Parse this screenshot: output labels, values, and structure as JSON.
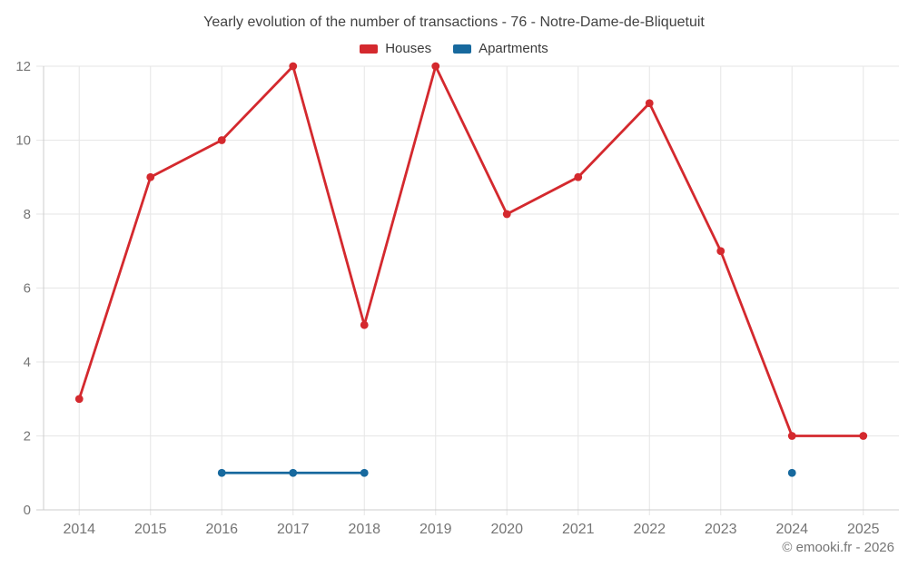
{
  "title": "Yearly evolution of the number of transactions - 76 - Notre-Dame-de-Bliquetuit",
  "footer": "© emooki.fr - 2026",
  "colors": {
    "houses": "#d4292e",
    "apartments": "#17699e",
    "grid": "#e6e6e6",
    "axis": "#cccccc",
    "tick_label": "#757575",
    "title_text": "#424242",
    "legend_text": "#3b3b3b",
    "background": "#ffffff"
  },
  "chart_data": {
    "type": "line",
    "title": "Yearly evolution of the number of transactions - 76 - Notre-Dame-de-Bliquetuit",
    "categories": [
      2014,
      2015,
      2016,
      2017,
      2018,
      2019,
      2020,
      2021,
      2022,
      2023,
      2024,
      2025
    ],
    "series": [
      {
        "name": "Houses",
        "color": "#d4292e",
        "values": [
          3,
          9,
          10,
          12,
          5,
          12,
          8,
          9,
          11,
          7,
          2,
          2
        ]
      },
      {
        "name": "Apartments",
        "color": "#17699e",
        "values": [
          null,
          null,
          1,
          1,
          1,
          null,
          null,
          null,
          null,
          null,
          1,
          null
        ]
      }
    ],
    "xlabel": "",
    "ylabel": "",
    "ylim": [
      0,
      12
    ],
    "yticks": [
      0,
      2,
      4,
      6,
      8,
      10,
      12
    ],
    "grid": true,
    "legend_position": "top"
  }
}
